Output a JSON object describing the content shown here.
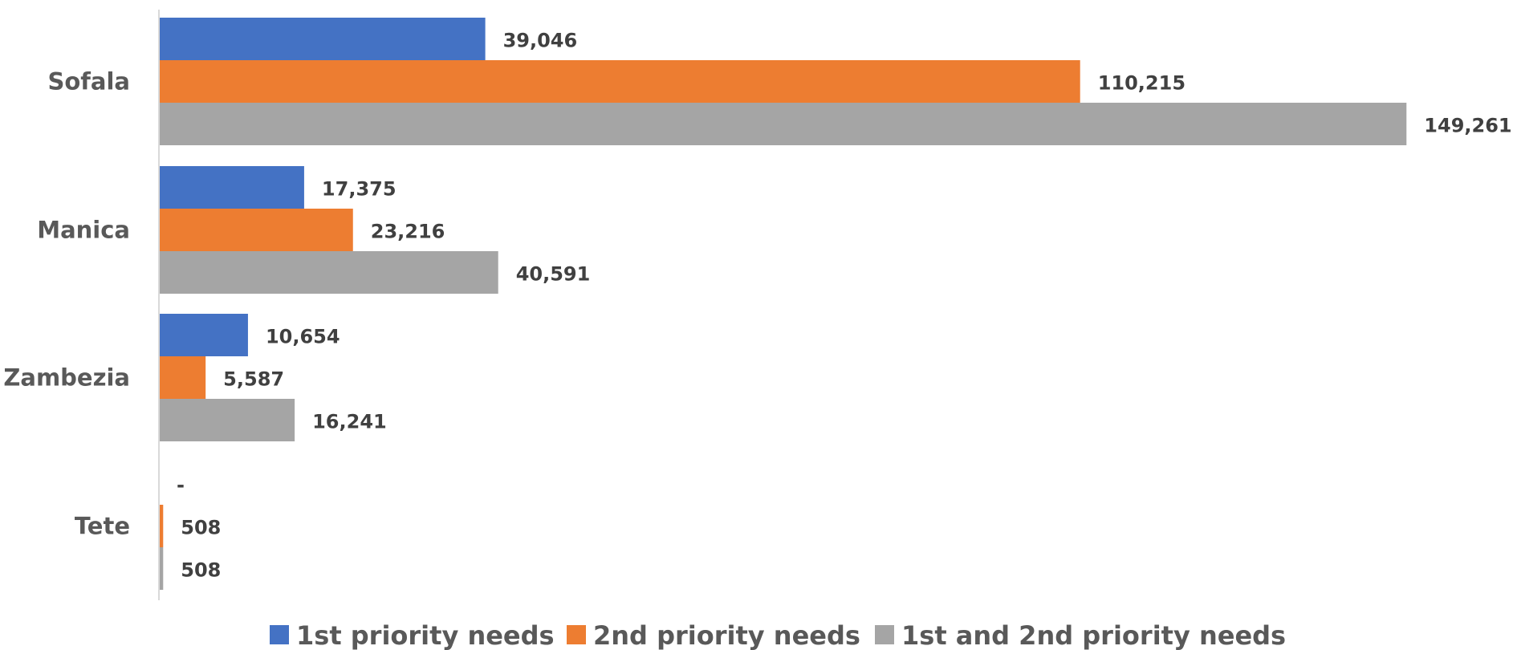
{
  "chart_data": {
    "type": "bar",
    "orientation": "horizontal",
    "categories": [
      "Sofala",
      "Manica",
      "Zambezia",
      "Tete"
    ],
    "series": [
      {
        "name": "1st priority needs",
        "color": "#4472C4",
        "values": [
          39046,
          17375,
          10654,
          0
        ],
        "labels": [
          "39,046",
          "17,375",
          "10,654",
          "-"
        ]
      },
      {
        "name": "2nd priority needs",
        "color": "#ED7D31",
        "values": [
          110215,
          23216,
          5587,
          508
        ],
        "labels": [
          "110,215",
          "23,216",
          "5,587",
          "508"
        ]
      },
      {
        "name": "1st and 2nd priority needs",
        "color": "#A5A5A5",
        "values": [
          149261,
          40591,
          16241,
          508
        ],
        "labels": [
          "149,261",
          "40,591",
          "16,241",
          "508"
        ]
      }
    ],
    "xlim": [
      0,
      150000
    ],
    "grid": false,
    "legend_position": "bottom",
    "axis_color": "#D9D9D9"
  }
}
